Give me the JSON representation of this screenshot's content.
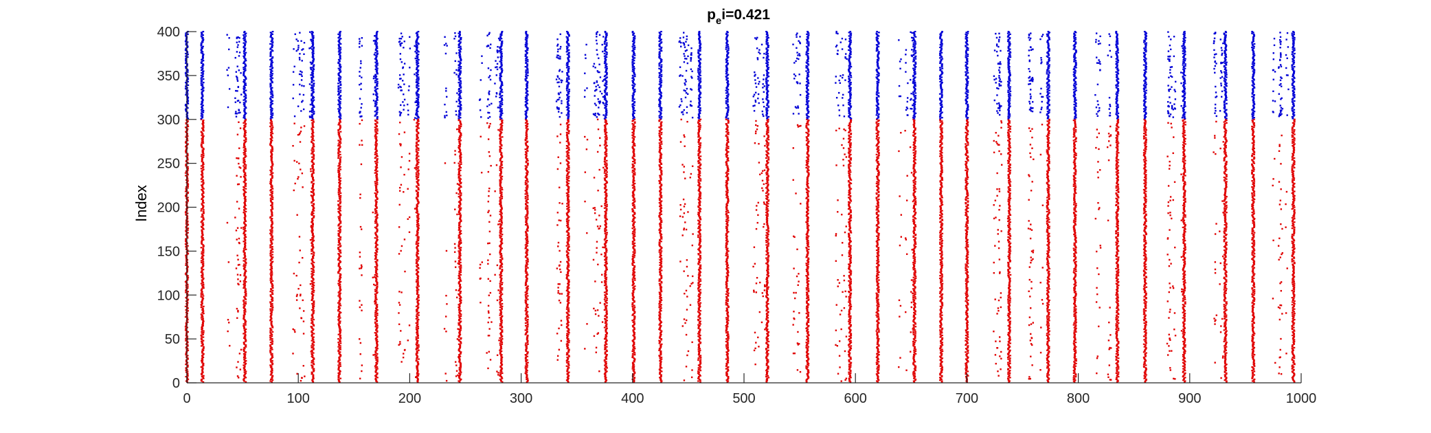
{
  "chart_data": {
    "type": "scatter",
    "title_base": "p",
    "title_sub": "e",
    "title_rest": "i=0.421",
    "xlabel": "",
    "ylabel": "Index",
    "xlim": [
      0,
      1000
    ],
    "ylim": [
      0,
      400
    ],
    "xticks": [
      0,
      100,
      200,
      300,
      400,
      500,
      600,
      700,
      800,
      900,
      1000
    ],
    "yticks": [
      0,
      50,
      100,
      150,
      200,
      250,
      300,
      350,
      400
    ],
    "grid": false,
    "colors": {
      "excitatory": "#e00000",
      "inhibitory": "#0000d6"
    },
    "series": [
      {
        "group": "excitatory",
        "index_range": [
          1,
          300
        ],
        "color": "#e00000"
      },
      {
        "group": "inhibitory",
        "index_range": [
          301,
          400
        ],
        "color": "#0000d6"
      }
    ],
    "burst_times": [
      0,
      14,
      52,
      76,
      113,
      137,
      170,
      207,
      245,
      282,
      305,
      342,
      376,
      401,
      425,
      460,
      485,
      521,
      557,
      595,
      620,
      653,
      677,
      700,
      738,
      773,
      797,
      835,
      860,
      895,
      932,
      957,
      993
    ],
    "sparse_intervals": [
      [
        36,
        50
      ],
      [
        95,
        112
      ],
      [
        155,
        168
      ],
      [
        190,
        206
      ],
      [
        225,
        243
      ],
      [
        262,
        280
      ],
      [
        325,
        341
      ],
      [
        358,
        375
      ],
      [
        442,
        458
      ],
      [
        505,
        520
      ],
      [
        540,
        556
      ],
      [
        578,
        594
      ],
      [
        636,
        652
      ],
      [
        722,
        737
      ],
      [
        756,
        772
      ],
      [
        815,
        833
      ],
      [
        878,
        894
      ],
      [
        915,
        931
      ],
      [
        975,
        992
      ]
    ]
  }
}
